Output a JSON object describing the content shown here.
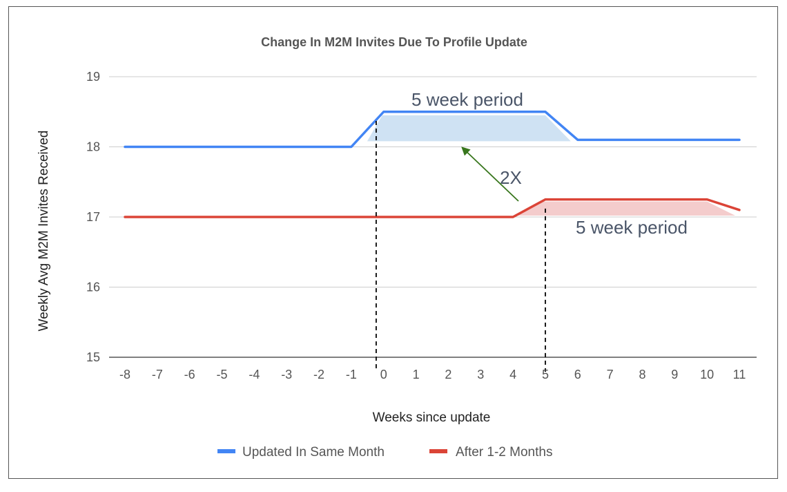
{
  "chart_data": {
    "type": "line",
    "title": "Change In M2M Invites Due To Profile Update",
    "xlabel": "Weeks since update",
    "ylabel": "Weekly Avg M2M Invites Received",
    "x": [
      -8,
      -7,
      -6,
      -5,
      -4,
      -3,
      -2,
      -1,
      0,
      1,
      2,
      3,
      4,
      5,
      6,
      7,
      8,
      9,
      10,
      11
    ],
    "ylim": [
      15,
      19
    ],
    "yticks": [
      15,
      16,
      17,
      18,
      19
    ],
    "grid": true,
    "legend_position": "bottom",
    "series": [
      {
        "name": "Updated In Same Month",
        "color": "#4285f4",
        "values": [
          18,
          18,
          18,
          18,
          18,
          18,
          18,
          18,
          18.5,
          18.5,
          18.5,
          18.5,
          18.5,
          18.5,
          18.1,
          18.1,
          18.1,
          18.1,
          18.1,
          18.1
        ]
      },
      {
        "name": "After 1-2 Months",
        "color": "#db4437",
        "values": [
          17,
          17,
          17,
          17,
          17,
          17,
          17,
          17,
          17,
          17,
          17,
          17,
          17,
          17.25,
          17.25,
          17.25,
          17.25,
          17.25,
          17.25,
          17.1
        ]
      }
    ],
    "annotations": [
      {
        "text": "5 week period",
        "near_series": "Updated In Same Month"
      },
      {
        "text": "5 week period",
        "near_series": "After 1-2 Months"
      },
      {
        "text": "2X"
      }
    ],
    "colors": {
      "gridline": "#cccccc",
      "baseline": "#333333",
      "blue_fill": "#cfe2f3",
      "red_fill": "#f4cccc",
      "arrow": "#38761d"
    }
  }
}
